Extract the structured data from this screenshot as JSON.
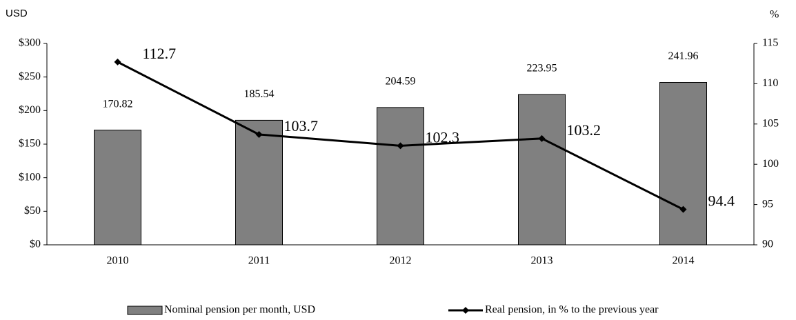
{
  "chart_data": {
    "type": "bar",
    "ylabel": "USD",
    "y2label": "%",
    "categories": [
      "2010",
      "2011",
      "2012",
      "2013",
      "2014"
    ],
    "series": [
      {
        "name": "Nominal pension per month, USD",
        "type": "bar",
        "color": "#808080",
        "values": [
          170.82,
          185.54,
          204.59,
          223.95,
          241.96
        ]
      },
      {
        "name": "Real pension, in % to the previous year",
        "type": "line",
        "axis": "y2",
        "color": "#000000",
        "values": [
          112.7,
          103.7,
          102.3,
          103.2,
          94.4
        ]
      }
    ],
    "ylim": [
      0,
      300
    ],
    "yticks": [
      {
        "value": 0,
        "label": "$0"
      },
      {
        "value": 50,
        "label": "$50"
      },
      {
        "value": 100,
        "label": "$100"
      },
      {
        "value": 150,
        "label": "$150"
      },
      {
        "value": 200,
        "label": "$200"
      },
      {
        "value": 250,
        "label": "$250"
      },
      {
        "value": 300,
        "label": "$300"
      }
    ],
    "y2lim": [
      90,
      115
    ],
    "y2ticks": [
      90,
      95,
      100,
      105,
      110,
      115
    ],
    "legend": "bottom"
  }
}
